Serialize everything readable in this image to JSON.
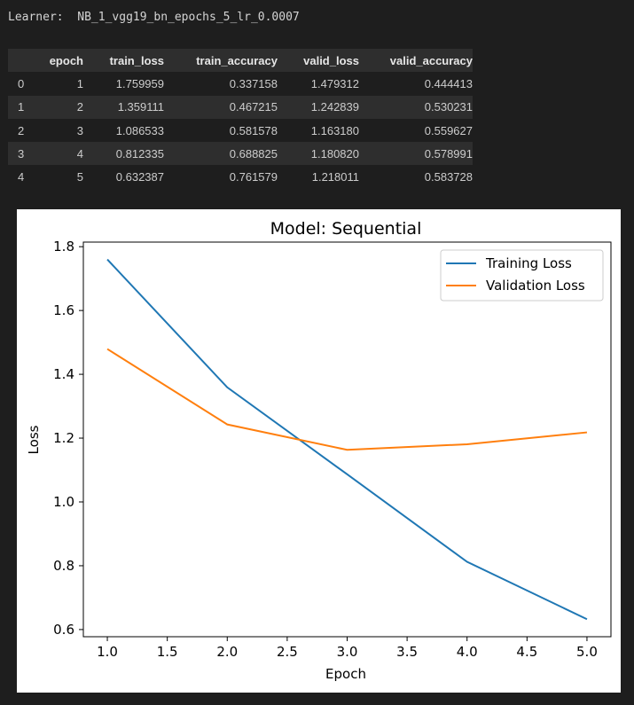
{
  "learner": {
    "label": "Learner:",
    "name": "NB_1_vgg19_bn_epochs_5_lr_0.0007"
  },
  "table": {
    "columns": [
      "",
      "epoch",
      "train_loss",
      "train_accuracy",
      "valid_loss",
      "valid_accuracy"
    ],
    "rows": [
      [
        "0",
        "1",
        "1.759959",
        "0.337158",
        "1.479312",
        "0.444413"
      ],
      [
        "1",
        "2",
        "1.359111",
        "0.467215",
        "1.242839",
        "0.530231"
      ],
      [
        "2",
        "3",
        "1.086533",
        "0.581578",
        "1.163180",
        "0.559627"
      ],
      [
        "3",
        "4",
        "0.812335",
        "0.688825",
        "1.180820",
        "0.578991"
      ],
      [
        "4",
        "5",
        "0.632387",
        "0.761579",
        "1.218011",
        "0.583728"
      ]
    ]
  },
  "chart_data": {
    "type": "line",
    "title": "Model: Sequential",
    "xlabel": "Epoch",
    "ylabel": "Loss",
    "x": [
      1,
      2,
      3,
      4,
      5
    ],
    "xlim": [
      0.8,
      5.2
    ],
    "ylim": [
      0.5775,
      1.8144
    ],
    "xticks": [
      "1.0",
      "1.5",
      "2.0",
      "2.5",
      "3.0",
      "3.5",
      "4.0",
      "4.5",
      "5.0"
    ],
    "yticks": [
      "0.6",
      "0.8",
      "1.0",
      "1.2",
      "1.4",
      "1.6",
      "1.8"
    ],
    "series": [
      {
        "name": "Training Loss",
        "color": "#1f77b4",
        "values": [
          1.759959,
          1.359111,
          1.086533,
          0.812335,
          0.632387
        ]
      },
      {
        "name": "Validation Loss",
        "color": "#ff7f0e",
        "values": [
          1.479312,
          1.242839,
          1.16318,
          1.18082,
          1.218011
        ]
      }
    ],
    "legend": "upper right",
    "grid": false
  }
}
